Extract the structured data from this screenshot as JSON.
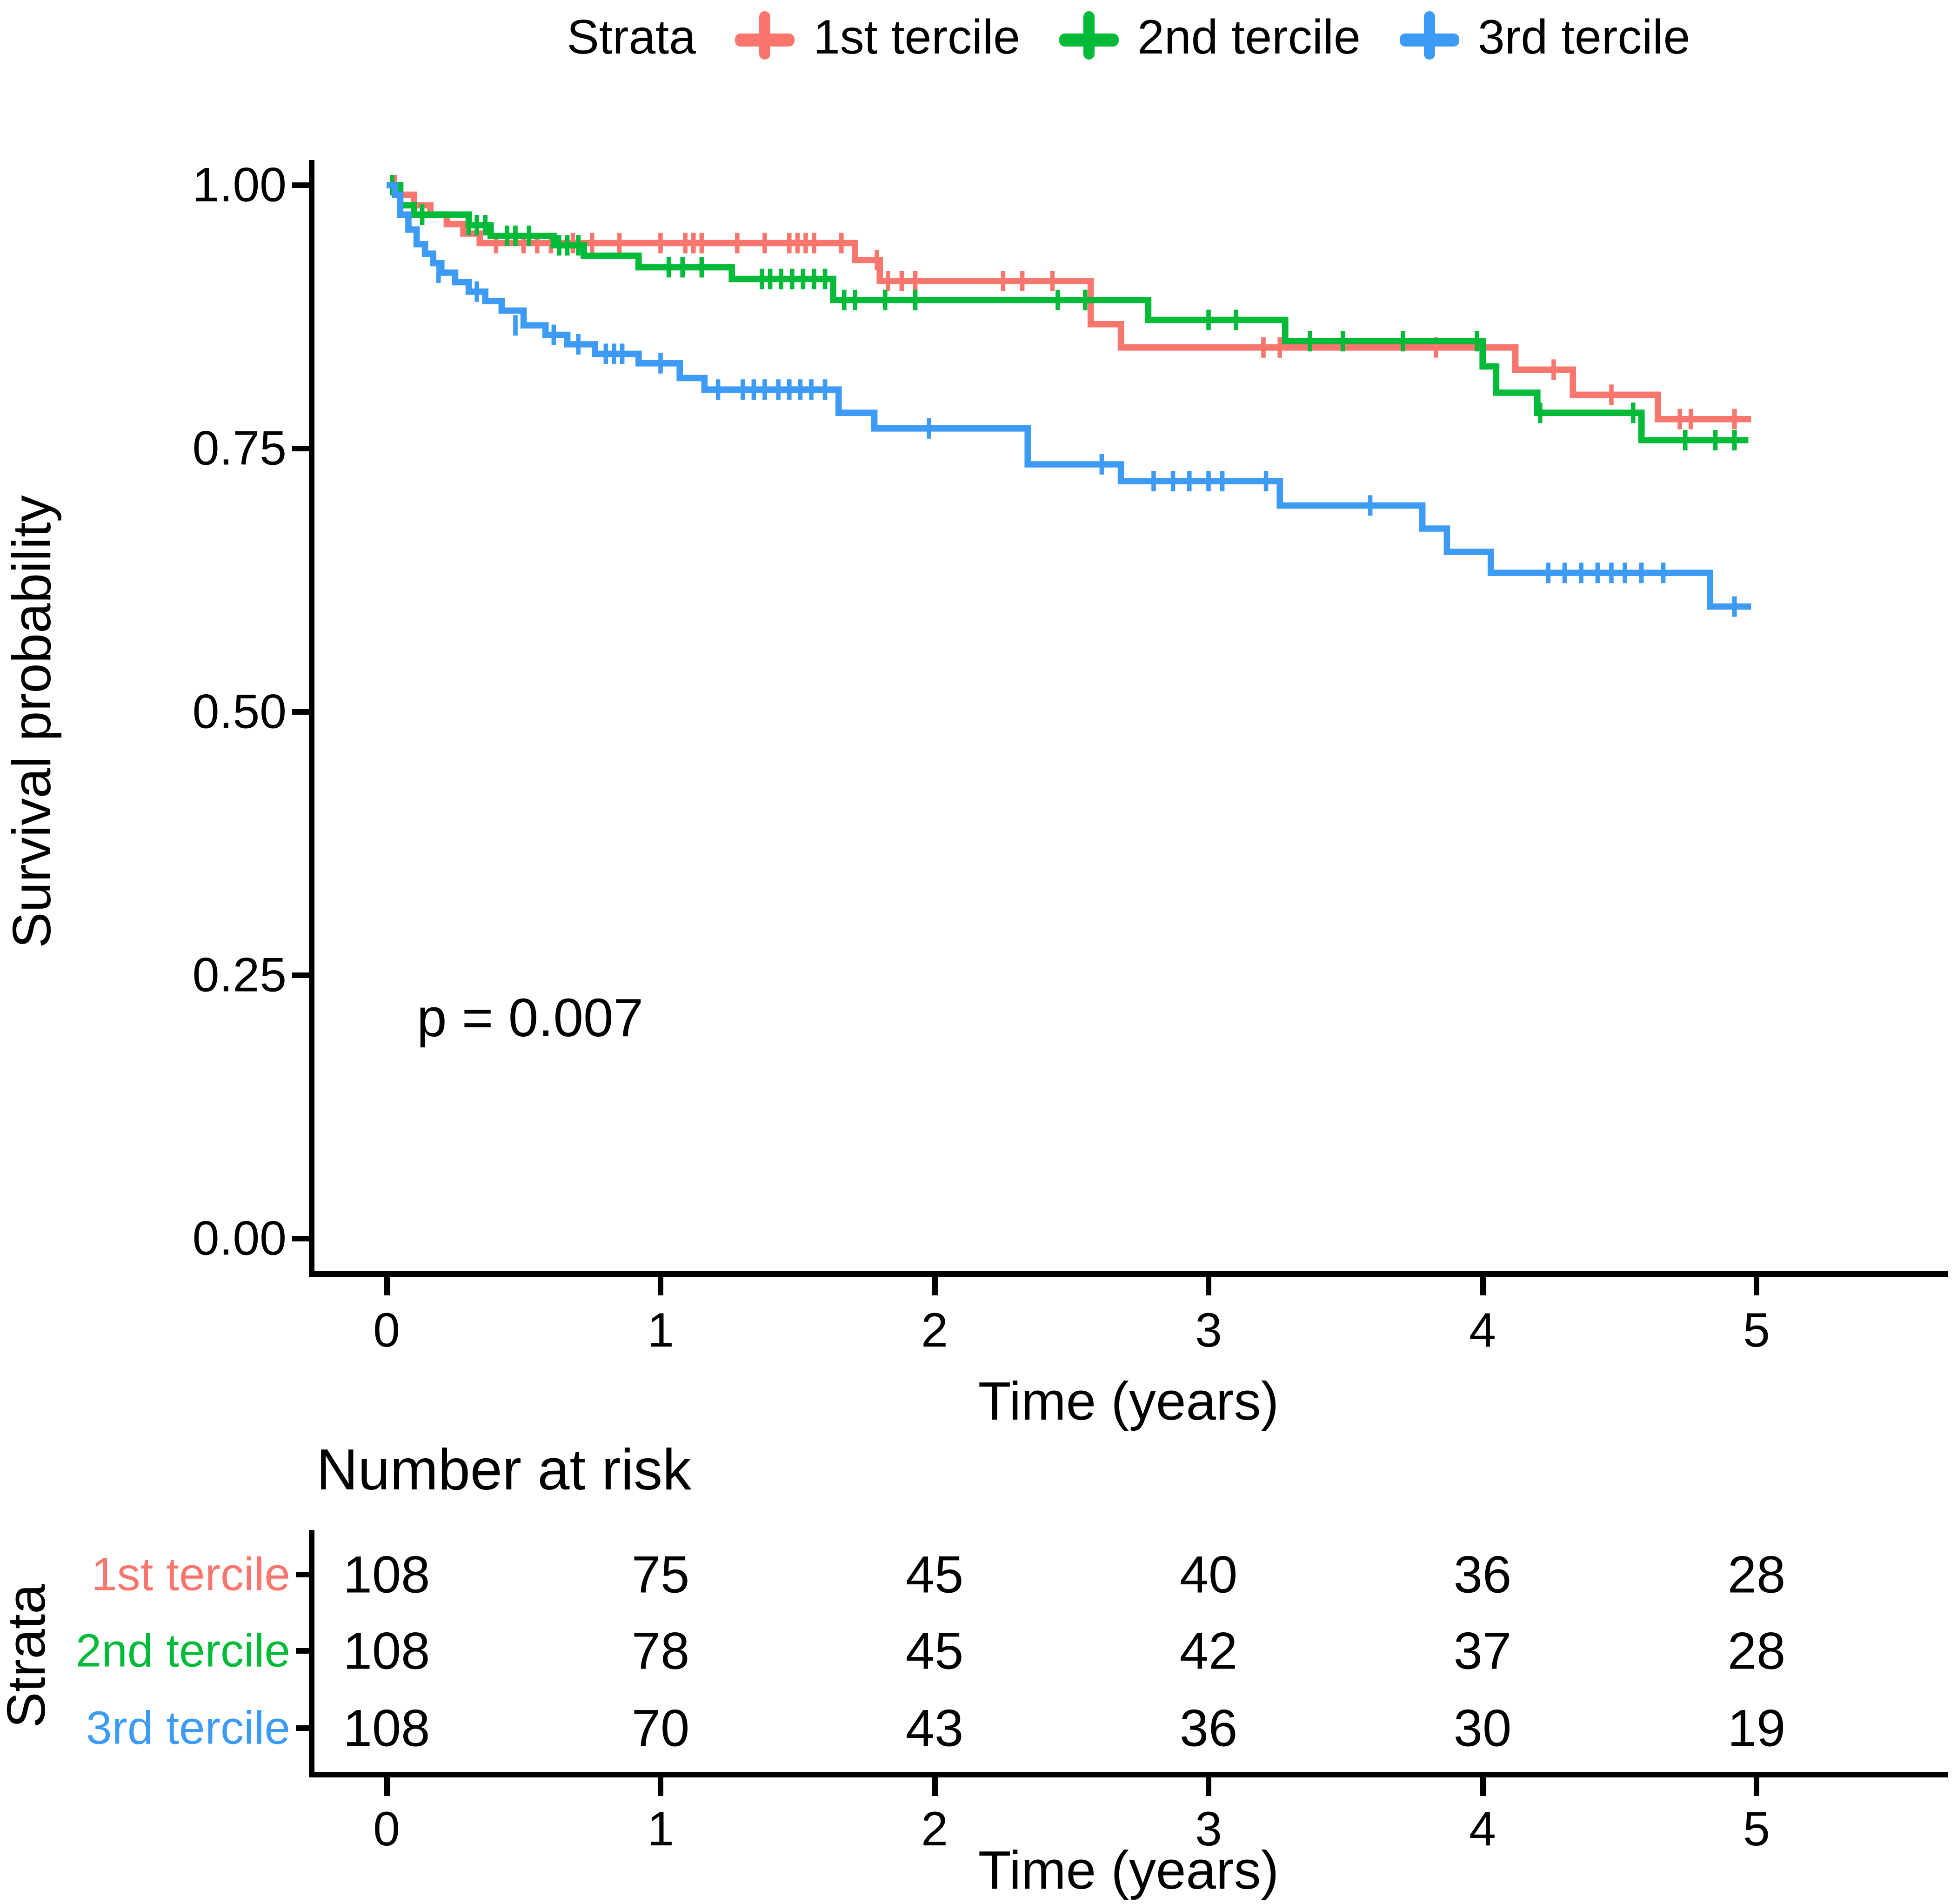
{
  "legend": {
    "title": "Strata",
    "items": [
      {
        "label": "1st tercile",
        "color": "#F8766D"
      },
      {
        "label": "2nd tercile",
        "color": "#00BA38"
      },
      {
        "label": "3rd tercile",
        "color": "#3D9BF5"
      }
    ]
  },
  "plot": {
    "p_value_label": "p = 0.007",
    "y_axis": {
      "title": "Survival probability",
      "tick_labels": [
        "1.00",
        "0.75",
        "0.50",
        "0.25",
        "0.00"
      ]
    },
    "x_axis": {
      "title": "Time (years)",
      "tick_labels": [
        "0",
        "1",
        "2",
        "3",
        "4",
        "5"
      ]
    }
  },
  "chart_data": {
    "type": "line",
    "subtype": "kaplan_meier_step",
    "title": "",
    "xlabel": "Time (years)",
    "ylabel": "Survival probability",
    "xlim": [
      0,
      5
    ],
    "ylim": [
      0.0,
      1.0
    ],
    "x_ticks": [
      0,
      1,
      2,
      3,
      4,
      5
    ],
    "y_ticks": [
      0.0,
      0.25,
      0.5,
      0.75,
      1.0
    ],
    "grid": false,
    "legend_position": "top",
    "p_value": "p = 0.007",
    "series": [
      {
        "name": "1st tercile",
        "color": "#F8766D",
        "end_time": 4.98,
        "steps": [
          [
            0,
            1.0
          ],
          [
            0.05,
            0.991
          ],
          [
            0.1,
            0.981
          ],
          [
            0.16,
            0.972
          ],
          [
            0.22,
            0.963
          ],
          [
            0.28,
            0.954
          ],
          [
            0.34,
            0.945
          ],
          [
            1.71,
            0.929
          ],
          [
            1.8,
            0.909
          ],
          [
            2.57,
            0.868
          ],
          [
            2.68,
            0.846
          ],
          [
            4.12,
            0.825
          ],
          [
            4.33,
            0.801
          ],
          [
            4.64,
            0.778
          ]
        ],
        "censor_marks": [
          [
            0.03,
            1.0
          ],
          [
            0.4,
            0.945
          ],
          [
            0.5,
            0.945
          ],
          [
            0.55,
            0.945
          ],
          [
            0.6,
            0.945
          ],
          [
            0.68,
            0.945
          ],
          [
            0.75,
            0.945
          ],
          [
            0.85,
            0.945
          ],
          [
            1.0,
            0.945
          ],
          [
            1.09,
            0.945
          ],
          [
            1.12,
            0.945
          ],
          [
            1.15,
            0.945
          ],
          [
            1.28,
            0.945
          ],
          [
            1.38,
            0.945
          ],
          [
            1.47,
            0.945
          ],
          [
            1.5,
            0.945
          ],
          [
            1.53,
            0.945
          ],
          [
            1.56,
            0.945
          ],
          [
            1.66,
            0.945
          ],
          [
            1.79,
            0.929
          ],
          [
            1.83,
            0.909
          ],
          [
            1.88,
            0.909
          ],
          [
            1.93,
            0.909
          ],
          [
            2.25,
            0.909
          ],
          [
            2.32,
            0.909
          ],
          [
            2.43,
            0.909
          ],
          [
            3.2,
            0.846
          ],
          [
            3.26,
            0.846
          ],
          [
            3.83,
            0.846
          ],
          [
            4.26,
            0.825
          ],
          [
            4.47,
            0.801
          ],
          [
            4.72,
            0.778
          ],
          [
            4.76,
            0.778
          ],
          [
            4.92,
            0.778
          ]
        ]
      },
      {
        "name": "2nd tercile",
        "color": "#00BA38",
        "end_time": 4.97,
        "steps": [
          [
            0,
            1.0
          ],
          [
            0.05,
            0.981
          ],
          [
            0.1,
            0.972
          ],
          [
            0.3,
            0.962
          ],
          [
            0.38,
            0.952
          ],
          [
            0.61,
            0.943
          ],
          [
            0.72,
            0.933
          ],
          [
            0.92,
            0.922
          ],
          [
            1.26,
            0.911
          ],
          [
            1.63,
            0.891
          ],
          [
            2.78,
            0.872
          ],
          [
            3.28,
            0.852
          ],
          [
            4.0,
            0.828
          ],
          [
            4.05,
            0.803
          ],
          [
            4.2,
            0.784
          ],
          [
            4.58,
            0.758
          ]
        ],
        "censor_marks": [
          [
            0.02,
            1.0
          ],
          [
            0.13,
            0.972
          ],
          [
            0.3,
            0.962
          ],
          [
            0.33,
            0.962
          ],
          [
            0.36,
            0.962
          ],
          [
            0.44,
            0.952
          ],
          [
            0.47,
            0.952
          ],
          [
            0.52,
            0.952
          ],
          [
            0.63,
            0.943
          ],
          [
            0.66,
            0.943
          ],
          [
            0.7,
            0.943
          ],
          [
            1.03,
            0.922
          ],
          [
            1.08,
            0.922
          ],
          [
            1.15,
            0.922
          ],
          [
            1.37,
            0.911
          ],
          [
            1.4,
            0.911
          ],
          [
            1.44,
            0.911
          ],
          [
            1.48,
            0.911
          ],
          [
            1.52,
            0.911
          ],
          [
            1.56,
            0.911
          ],
          [
            1.6,
            0.911
          ],
          [
            1.67,
            0.891
          ],
          [
            1.71,
            0.891
          ],
          [
            1.82,
            0.891
          ],
          [
            1.93,
            0.891
          ],
          [
            2.45,
            0.891
          ],
          [
            2.55,
            0.891
          ],
          [
            3.0,
            0.872
          ],
          [
            3.1,
            0.872
          ],
          [
            3.37,
            0.852
          ],
          [
            3.49,
            0.852
          ],
          [
            3.71,
            0.852
          ],
          [
            3.98,
            0.852
          ],
          [
            4.21,
            0.784
          ],
          [
            4.55,
            0.784
          ],
          [
            4.74,
            0.758
          ],
          [
            4.85,
            0.758
          ],
          [
            4.92,
            0.758
          ]
        ]
      },
      {
        "name": "3rd tercile",
        "color": "#3D9BF5",
        "end_time": 4.98,
        "steps": [
          [
            0,
            1.0
          ],
          [
            0.03,
            0.991
          ],
          [
            0.05,
            0.972
          ],
          [
            0.08,
            0.958
          ],
          [
            0.11,
            0.944
          ],
          [
            0.14,
            0.935
          ],
          [
            0.17,
            0.926
          ],
          [
            0.2,
            0.917
          ],
          [
            0.25,
            0.908
          ],
          [
            0.3,
            0.899
          ],
          [
            0.36,
            0.89
          ],
          [
            0.42,
            0.881
          ],
          [
            0.5,
            0.867
          ],
          [
            0.58,
            0.858
          ],
          [
            0.66,
            0.849
          ],
          [
            0.76,
            0.84
          ],
          [
            0.92,
            0.831
          ],
          [
            1.07,
            0.817
          ],
          [
            1.16,
            0.806
          ],
          [
            1.65,
            0.784
          ],
          [
            1.78,
            0.769
          ],
          [
            2.34,
            0.735
          ],
          [
            2.68,
            0.719
          ],
          [
            3.26,
            0.696
          ],
          [
            3.78,
            0.674
          ],
          [
            3.87,
            0.652
          ],
          [
            4.03,
            0.632
          ],
          [
            4.83,
            0.6
          ]
        ],
        "censor_marks": [
          [
            0.19,
            0.917
          ],
          [
            0.33,
            0.899
          ],
          [
            0.47,
            0.867
          ],
          [
            0.61,
            0.858
          ],
          [
            0.7,
            0.849
          ],
          [
            0.8,
            0.84
          ],
          [
            0.83,
            0.84
          ],
          [
            0.86,
            0.84
          ],
          [
            1.0,
            0.831
          ],
          [
            1.21,
            0.806
          ],
          [
            1.3,
            0.806
          ],
          [
            1.34,
            0.806
          ],
          [
            1.38,
            0.806
          ],
          [
            1.43,
            0.806
          ],
          [
            1.47,
            0.806
          ],
          [
            1.51,
            0.806
          ],
          [
            1.55,
            0.806
          ],
          [
            1.6,
            0.806
          ],
          [
            1.98,
            0.769
          ],
          [
            2.61,
            0.735
          ],
          [
            2.8,
            0.719
          ],
          [
            2.87,
            0.719
          ],
          [
            2.93,
            0.719
          ],
          [
            3.0,
            0.719
          ],
          [
            3.05,
            0.719
          ],
          [
            3.21,
            0.719
          ],
          [
            3.59,
            0.696
          ],
          [
            4.24,
            0.632
          ],
          [
            4.3,
            0.632
          ],
          [
            4.36,
            0.632
          ],
          [
            4.42,
            0.632
          ],
          [
            4.47,
            0.632
          ],
          [
            4.52,
            0.632
          ],
          [
            4.58,
            0.632
          ],
          [
            4.66,
            0.632
          ],
          [
            4.92,
            0.6
          ]
        ]
      }
    ]
  },
  "risk_table": {
    "title": "Number at risk",
    "axis_title": "Strata",
    "x_axis": {
      "title": "Time (years)",
      "tick_labels": [
        "0",
        "1",
        "2",
        "3",
        "4",
        "5"
      ]
    },
    "rows": [
      {
        "label": "1st tercile",
        "color": "#F8766D",
        "values": [
          "108",
          "75",
          "45",
          "40",
          "36",
          "28"
        ]
      },
      {
        "label": "2nd tercile",
        "color": "#00BA38",
        "values": [
          "108",
          "78",
          "45",
          "42",
          "37",
          "28"
        ]
      },
      {
        "label": "3rd tercile",
        "color": "#3D9BF5",
        "values": [
          "108",
          "70",
          "43",
          "36",
          "30",
          "19"
        ]
      }
    ]
  }
}
